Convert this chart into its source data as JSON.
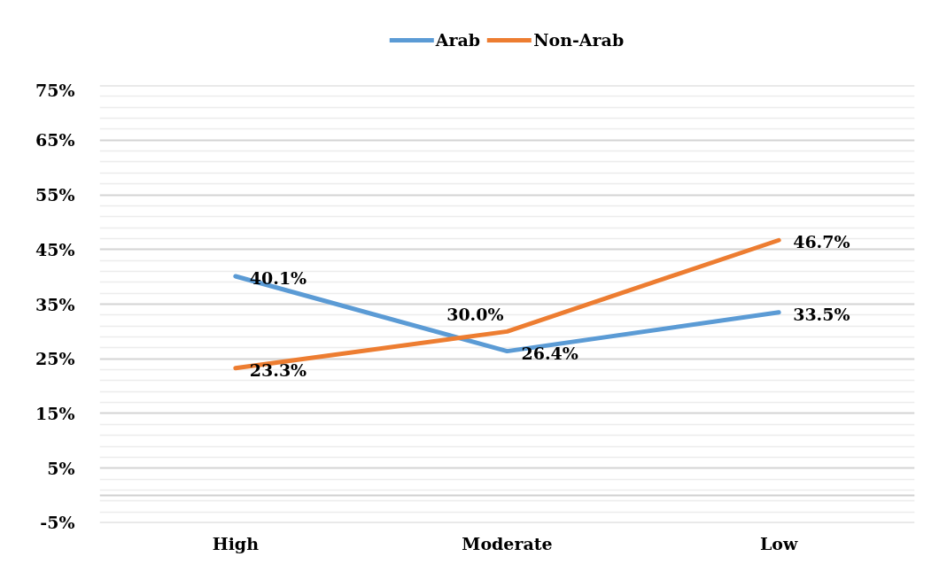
{
  "chart_data": {
    "type": "line",
    "categories": [
      "High",
      "Moderate",
      "Low"
    ],
    "series": [
      {
        "name": "Arab",
        "color": "#5b9bd5",
        "values": [
          40.1,
          26.4,
          33.5
        ],
        "value_labels": [
          "40.1%",
          "26.4%",
          "33.5%"
        ]
      },
      {
        "name": "Non-Arab",
        "color": "#ed7d31",
        "values": [
          23.3,
          30.0,
          46.7
        ],
        "value_labels": [
          "23.3%",
          "30.0%",
          "46.7%"
        ]
      }
    ],
    "ylim": [
      -5,
      75
    ],
    "yticks": [
      {
        "value": -5,
        "label": "-5%"
      },
      {
        "value": 5,
        "label": "5%"
      },
      {
        "value": 15,
        "label": "15%"
      },
      {
        "value": 25,
        "label": "25%"
      },
      {
        "value": 35,
        "label": "35%"
      },
      {
        "value": 45,
        "label": "45%"
      },
      {
        "value": 55,
        "label": "55%"
      },
      {
        "value": 65,
        "label": "65%"
      },
      {
        "value": 75,
        "label": "75%"
      }
    ],
    "ref_lines": [
      {
        "axis": "y",
        "value": 0,
        "color": "#d0d0d0"
      }
    ],
    "grid": "y",
    "legend": "top",
    "line_style": "solid"
  }
}
